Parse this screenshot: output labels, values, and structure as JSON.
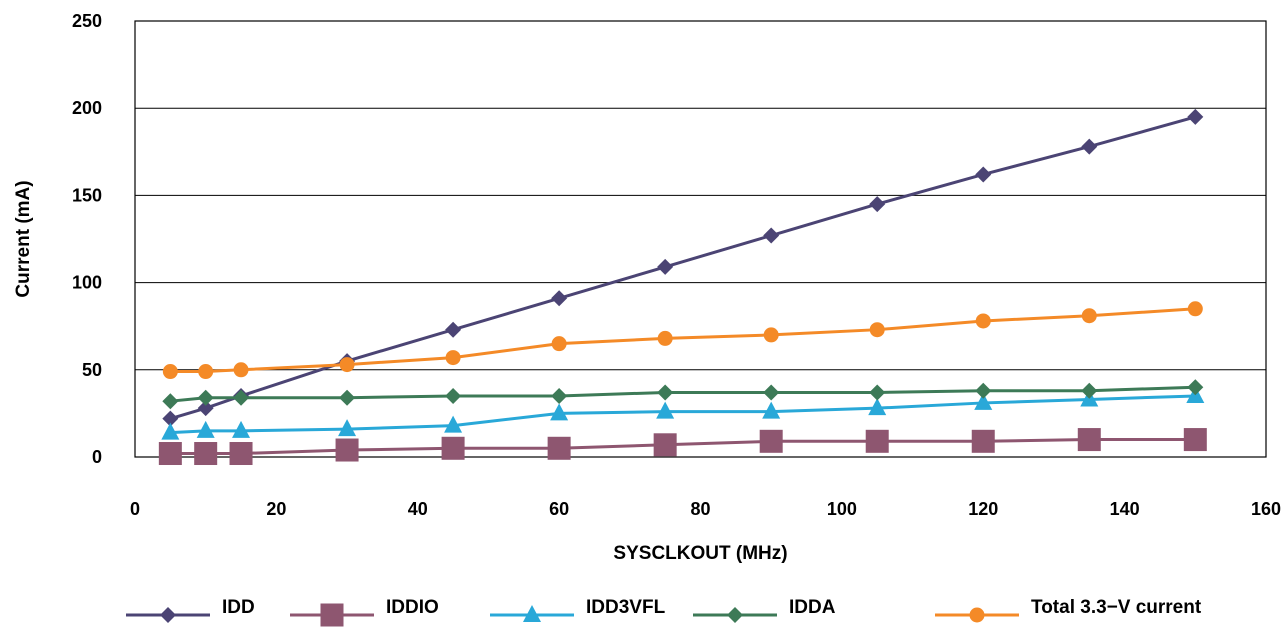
{
  "chart_data": {
    "type": "line",
    "xlabel": "SYSCLKOUT (MHz)",
    "ylabel": "Current (mA)",
    "xlim": [
      0,
      160
    ],
    "ylim": [
      0,
      250
    ],
    "x_ticks": [
      0,
      20,
      40,
      60,
      80,
      100,
      120,
      140,
      160
    ],
    "y_ticks": [
      0,
      50,
      100,
      150,
      200,
      250
    ],
    "grid": "horizontal",
    "legend_position": "bottom",
    "x": [
      5,
      10,
      15,
      30,
      45,
      60,
      75,
      90,
      105,
      120,
      135,
      150
    ],
    "series": [
      {
        "name": "IDD",
        "color": "#4b4474",
        "marker": "diamond",
        "values": [
          22,
          28,
          35,
          55,
          73,
          91,
          109,
          127,
          145,
          162,
          178,
          195
        ]
      },
      {
        "name": "IDDIO",
        "color": "#8e5670",
        "marker": "square",
        "values": [
          2,
          2,
          2,
          4,
          5,
          5,
          7,
          9,
          9,
          9,
          10,
          10
        ]
      },
      {
        "name": "IDD3VFL",
        "color": "#29a8d8",
        "marker": "triangle",
        "values": [
          14,
          15,
          15,
          16,
          18,
          25,
          26,
          26,
          28,
          31,
          33,
          35
        ]
      },
      {
        "name": "IDDA",
        "color": "#3d7a57",
        "marker": "diamond",
        "values": [
          32,
          34,
          34,
          34,
          35,
          35,
          37,
          37,
          37,
          38,
          38,
          40
        ]
      },
      {
        "name": "Total 3.3−V  current",
        "color": "#f48a27",
        "marker": "circle",
        "values": [
          49,
          49,
          50,
          53,
          57,
          65,
          68,
          70,
          73,
          78,
          81,
          85
        ]
      }
    ]
  }
}
